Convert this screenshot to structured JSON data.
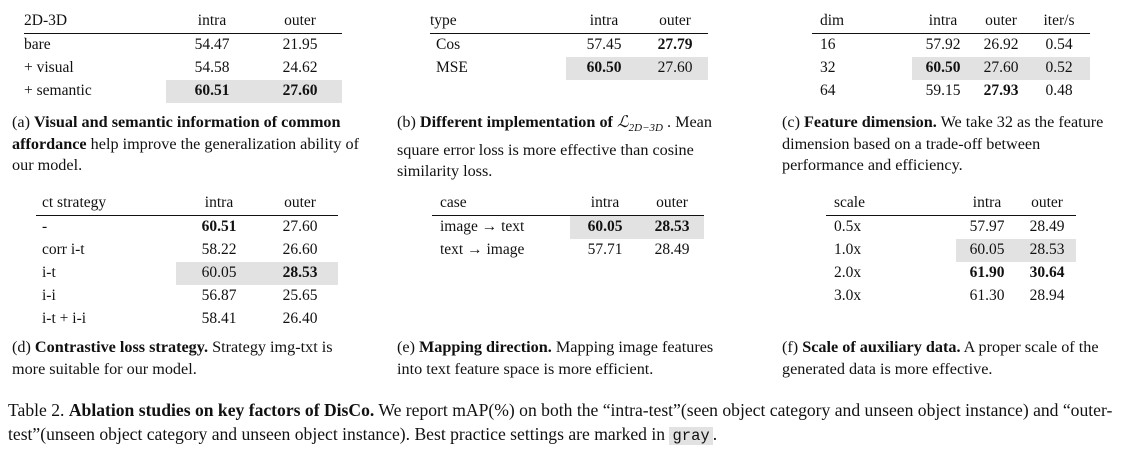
{
  "tables": {
    "a": {
      "headers": [
        "2D-3D",
        "intra",
        "outer"
      ],
      "rows": [
        [
          "bare",
          "54.47",
          "21.95"
        ],
        [
          "+ visual",
          "54.58",
          "24.62"
        ],
        [
          "+ semantic",
          "60.51",
          "27.60"
        ]
      ],
      "caption_label": "(a)",
      "caption_head": "Visual and semantic information of common affordance",
      "caption_body": "help improve the generalization ability of our model."
    },
    "b": {
      "headers": [
        "type",
        "intra",
        "outer"
      ],
      "rows": [
        [
          "Cos",
          "57.45",
          "27.79"
        ],
        [
          "MSE",
          "60.50",
          "27.60"
        ]
      ],
      "caption_label": "(b)",
      "caption_head": "Different implementation of",
      "caption_math": "ℒ",
      "caption_math_sub": "2D−3D",
      "caption_dot": ".",
      "caption_body": "Mean square error loss is more effective than cosine similarity loss."
    },
    "c": {
      "headers": [
        "dim",
        "intra",
        "outer",
        "iter/s"
      ],
      "rows": [
        [
          "16",
          "57.92",
          "26.92",
          "0.54"
        ],
        [
          "32",
          "60.50",
          "27.60",
          "0.52"
        ],
        [
          "64",
          "59.15",
          "27.93",
          "0.48"
        ]
      ],
      "caption_label": "(c)",
      "caption_head": "Feature dimension.",
      "caption_body": "We take 32 as the feature dimension based on a trade-off between performance and efficiency."
    },
    "d": {
      "headers": [
        "ct strategy",
        "intra",
        "outer"
      ],
      "rows": [
        [
          "-",
          "60.51",
          "27.60"
        ],
        [
          "corr i-t",
          "58.22",
          "26.60"
        ],
        [
          "i-t",
          "60.05",
          "28.53"
        ],
        [
          "i-i",
          "56.87",
          "25.65"
        ],
        [
          "i-t + i-i",
          "58.41",
          "26.40"
        ]
      ],
      "caption_label": "(d)",
      "caption_head": "Contrastive loss strategy.",
      "caption_body": "Strategy img-txt is more suitable for our model."
    },
    "e": {
      "headers": [
        "case",
        "intra",
        "outer"
      ],
      "rows": [
        [
          "image → text",
          "60.05",
          "28.53"
        ],
        [
          "text → image",
          "57.71",
          "28.49"
        ]
      ],
      "caption_label": "(e)",
      "caption_head": "Mapping direction.",
      "caption_body": "Mapping image features into text feature space is more efficient."
    },
    "f": {
      "headers": [
        "scale",
        "intra",
        "outer"
      ],
      "rows": [
        [
          "0.5x",
          "57.97",
          "28.49"
        ],
        [
          "1.0x",
          "60.05",
          "28.53"
        ],
        [
          "2.0x",
          "61.90",
          "30.64"
        ],
        [
          "3.0x",
          "61.30",
          "28.94"
        ]
      ],
      "caption_label": "(f)",
      "caption_head": "Scale of auxiliary data.",
      "caption_body": "A proper scale of the generated data is more effective."
    }
  },
  "main_caption": {
    "label": "Table 2.",
    "head": "Ablation studies on key factors of DisCo.",
    "body": "We report mAP(%) on both the “intra-test”(seen object category and unseen object instance) and “outer-test”(unseen object category and unseen object instance). Best practice settings are marked in",
    "gray_word": "gray",
    "end": "."
  }
}
